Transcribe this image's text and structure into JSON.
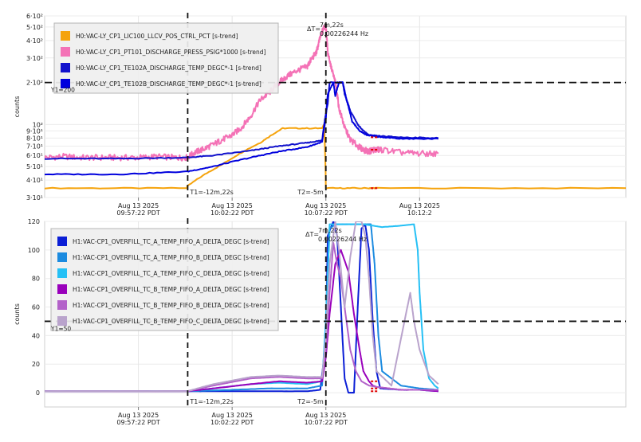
{
  "chart_data": [
    {
      "type": "line",
      "ylabel": "counts",
      "yscale": "log",
      "ylim": [
        30,
        600
      ],
      "y_ticks": [
        {
          "v": 30,
          "label": "3·10¹"
        },
        {
          "v": 40,
          "label": "4·10¹"
        },
        {
          "v": 50,
          "label": "5·10¹"
        },
        {
          "v": 60,
          "label": "6·10¹"
        },
        {
          "v": 70,
          "label": "7·10¹"
        },
        {
          "v": 80,
          "label": "8·10¹"
        },
        {
          "v": 90,
          "label": "9·10¹"
        },
        {
          "v": 100,
          "label": "10²"
        },
        {
          "v": 200,
          "label": "2·10²"
        },
        {
          "v": 300,
          "label": "3·10²"
        },
        {
          "v": 400,
          "label": "4·10²"
        },
        {
          "v": 500,
          "label": "5·10²"
        },
        {
          "v": 600,
          "label": "6·10²"
        }
      ],
      "xlim": [
        -20,
        11
      ],
      "x_ticks": [
        {
          "v": -15,
          "date": "Aug 13 2025",
          "time": "09:57:22 PDT"
        },
        {
          "v": -10,
          "date": "Aug 13 2025",
          "time": "10:02:22 PDT"
        },
        {
          "v": -5,
          "date": "Aug 13 2025",
          "time": "10:07:22 PDT"
        },
        {
          "v": 0,
          "date": "Aug 13 2025",
          "time": "10:12:2"
        }
      ],
      "cursors": {
        "t1": {
          "x": -12.37,
          "label": "T1=-12m,22s"
        },
        "t2": {
          "x": -5,
          "label": "T2=-5m"
        },
        "y1": {
          "y": 200,
          "label": "Y1=200"
        },
        "delta_label": "ΔT=",
        "delta_value": "7m,22s",
        "delta_freq": "0.00226244 Hz"
      },
      "grid": true,
      "legend_position": "top-left",
      "series": [
        {
          "name": "H0:VAC-LY_CP1_LIC100_LLCV_POS_CTRL_PCT [s-trend]",
          "color": "#f5a30c",
          "points": [
            [
              -20,
              35
            ],
            [
              -12.4,
              35
            ],
            [
              -12.4,
              36
            ],
            [
              -10.5,
              52
            ],
            [
              -8.5,
              74
            ],
            [
              -7.3,
              94
            ],
            [
              -5.2,
              94
            ],
            [
              -5.1,
              100
            ],
            [
              -5,
              35
            ],
            [
              -2.7,
              35
            ],
            [
              -2.3,
              35
            ],
            [
              11,
              35
            ]
          ]
        },
        {
          "name": "H0:VAC-LY_CP1_PT101_DISCHARGE_PRESS_PSIG*1000 [s-trend]",
          "color": "#f472b6",
          "points": [
            [
              -20,
              58
            ],
            [
              -19,
              59
            ],
            [
              -18,
              58
            ],
            [
              -17,
              58
            ],
            [
              -16,
              58
            ],
            [
              -15,
              58
            ],
            [
              -14,
              59
            ],
            [
              -13,
              58
            ],
            [
              -12.4,
              58
            ],
            [
              -12,
              63
            ],
            [
              -11.5,
              67
            ],
            [
              -11,
              72
            ],
            [
              -10.5,
              78
            ],
            [
              -10,
              84
            ],
            [
              -9.5,
              95
            ],
            [
              -9,
              115
            ],
            [
              -8.5,
              150
            ],
            [
              -8,
              170
            ],
            [
              -7.5,
              200
            ],
            [
              -7,
              225
            ],
            [
              -6.5,
              245
            ],
            [
              -6,
              260
            ],
            [
              -5.8,
              290
            ],
            [
              -5.5,
              330
            ],
            [
              -5.3,
              420
            ],
            [
              -5.1,
              500
            ],
            [
              -5,
              500
            ],
            [
              -4.9,
              330
            ],
            [
              -4.7,
              250
            ],
            [
              -4.5,
              200
            ],
            [
              -4.3,
              130
            ],
            [
              -4,
              95
            ],
            [
              -3.7,
              78
            ],
            [
              -3.3,
              70
            ],
            [
              -3,
              66
            ],
            [
              -2.7,
              64
            ],
            [
              -2.5,
              66
            ],
            [
              -2.3,
              66
            ],
            [
              -2,
              66
            ],
            [
              -1,
              63
            ],
            [
              0,
              62
            ],
            [
              1,
              62
            ]
          ]
        },
        {
          "name": "H0:VAC-LY_CP1_TE102A_DISCHARGE_TEMP_DEGC*-1 [s-trend]",
          "color": "#1111cc",
          "points": [
            [
              -20,
              57
            ],
            [
              -16,
              57
            ],
            [
              -12.4,
              58
            ],
            [
              -11,
              60
            ],
            [
              -9,
              65
            ],
            [
              -7.5,
              70
            ],
            [
              -6,
              74
            ],
            [
              -5.2,
              77
            ],
            [
              -5,
              120
            ],
            [
              -4.9,
              140
            ],
            [
              -4.8,
              200
            ],
            [
              -4.1,
              200
            ],
            [
              -4,
              165
            ],
            [
              -3.7,
              125
            ],
            [
              -3.3,
              100
            ],
            [
              -3,
              90
            ],
            [
              -2.7,
              84
            ],
            [
              -2.3,
              83
            ],
            [
              -1,
              81
            ],
            [
              1,
              80
            ]
          ]
        },
        {
          "name": "H0:VAC-LY_CP1_TE102B_DISCHARGE_TEMP_DEGC*-1 [s-trend]",
          "color": "#0000dd",
          "points": [
            [
              -20,
              44
            ],
            [
              -16,
              44
            ],
            [
              -12.4,
              46
            ],
            [
              -11,
              50
            ],
            [
              -9,
              58
            ],
            [
              -7.5,
              64
            ],
            [
              -6,
              69
            ],
            [
              -5.2,
              75
            ],
            [
              -5,
              110
            ],
            [
              -4.9,
              165
            ],
            [
              -4.6,
              200
            ],
            [
              -4.5,
              160
            ],
            [
              -4.3,
              200
            ],
            [
              -4.1,
              200
            ],
            [
              -3.9,
              150
            ],
            [
              -3.6,
              105
            ],
            [
              -3.2,
              90
            ],
            [
              -2.8,
              84
            ],
            [
              -2.3,
              82
            ],
            [
              -1,
              79
            ],
            [
              1,
              79
            ]
          ]
        }
      ]
    },
    {
      "type": "line",
      "ylabel": "counts",
      "ylim": [
        -10,
        120
      ],
      "y_ticks": [
        {
          "v": 0,
          "label": "0"
        },
        {
          "v": 20,
          "label": "20"
        },
        {
          "v": 40,
          "label": "40"
        },
        {
          "v": 60,
          "label": "60"
        },
        {
          "v": 80,
          "label": "80"
        },
        {
          "v": 100,
          "label": "100"
        },
        {
          "v": 120,
          "label": "120"
        }
      ],
      "xlim": [
        -20,
        11
      ],
      "x_ticks": [
        {
          "v": -15,
          "date": "Aug 13 2025",
          "time": "09:57:22 PDT"
        },
        {
          "v": -10,
          "date": "Aug 13 2025",
          "time": "10:02:22 PDT"
        },
        {
          "v": -5,
          "date": "Aug 13 2025",
          "time": "10:07:22 PDT"
        }
      ],
      "cursors": {
        "t1": {
          "x": -12.37,
          "label": "T1=-12m,22s"
        },
        "t2": {
          "x": -5,
          "label": "T2=-5m"
        },
        "y1": {
          "y": 50,
          "label": "Y1=50"
        },
        "delta_label": "ΔT=",
        "delta_value": "7m,22s",
        "delta_freq": "0.00226244 Hz"
      },
      "grid": true,
      "legend_position": "top-left",
      "series": [
        {
          "name": "H1:VAC-CP1_OVERFILL_TC_A_TEMP_FIFO_A_DELTA_DEGC [s-trend]",
          "color": "#0b1fd6",
          "points": [
            [
              -20,
              1
            ],
            [
              -12.4,
              1
            ],
            [
              -11,
              1
            ],
            [
              -8,
              1
            ],
            [
              -6,
              1
            ],
            [
              -5.3,
              2
            ],
            [
              -5,
              35
            ],
            [
              -4.9,
              110
            ],
            [
              -4.6,
              120
            ],
            [
              -4.4,
              110
            ],
            [
              -4.2,
              60
            ],
            [
              -4,
              10
            ],
            [
              -3.8,
              0
            ],
            [
              -3.5,
              0
            ],
            [
              -3.3,
              60
            ],
            [
              -3.1,
              115
            ],
            [
              -2.9,
              118
            ],
            [
              -2.7,
              100
            ],
            [
              -2.5,
              50
            ],
            [
              -2.3,
              15
            ],
            [
              -2.1,
              3
            ],
            [
              -1,
              2
            ],
            [
              0,
              2
            ],
            [
              1,
              1
            ]
          ]
        },
        {
          "name": "H1:VAC-CP1_OVERFILL_TC_A_TEMP_FIFO_B_DELTA_DEGC [s-trend]",
          "color": "#1c8be0",
          "points": [
            [
              -20,
              1
            ],
            [
              -12.4,
              1
            ],
            [
              -10,
              2
            ],
            [
              -8,
              3
            ],
            [
              -6,
              3
            ],
            [
              -5.2,
              5
            ],
            [
              -5,
              50
            ],
            [
              -4.8,
              115
            ],
            [
              -4.5,
              118
            ],
            [
              -3.5,
              118
            ],
            [
              -3,
              118
            ],
            [
              -2.6,
              118
            ],
            [
              -2.4,
              90
            ],
            [
              -2.2,
              40
            ],
            [
              -2,
              15
            ],
            [
              -1,
              5
            ],
            [
              0,
              3
            ],
            [
              1,
              2
            ]
          ]
        },
        {
          "name": "H1:VAC-CP1_OVERFILL_TC_A_TEMP_FIFO_C_DELTA_DEGC [s-trend]",
          "color": "#25c0f5",
          "points": [
            [
              -20,
              1
            ],
            [
              -12.4,
              1
            ],
            [
              -11,
              3
            ],
            [
              -9,
              6
            ],
            [
              -7.5,
              7
            ],
            [
              -6,
              6
            ],
            [
              -5.2,
              8
            ],
            [
              -5,
              50
            ],
            [
              -4.8,
              118
            ],
            [
              -3,
              118
            ],
            [
              -2,
              116
            ],
            [
              -1,
              117
            ],
            [
              -0.3,
              118
            ],
            [
              -0.1,
              100
            ],
            [
              0,
              70
            ],
            [
              0.2,
              30
            ],
            [
              0.5,
              10
            ],
            [
              0.8,
              5
            ],
            [
              1,
              3
            ]
          ]
        },
        {
          "name": "H1:VAC-CP1_OVERFILL_TC_B_TEMP_FIFO_A_DELTA_DEGC [s-trend]",
          "color": "#9900bb",
          "points": [
            [
              -20,
              1
            ],
            [
              -12.4,
              1
            ],
            [
              -11,
              3
            ],
            [
              -9,
              6
            ],
            [
              -7.5,
              8
            ],
            [
              -6,
              7
            ],
            [
              -5.2,
              8
            ],
            [
              -5,
              25
            ],
            [
              -4.8,
              55
            ],
            [
              -4.5,
              90
            ],
            [
              -4.2,
              100
            ],
            [
              -3.8,
              85
            ],
            [
              -3.5,
              55
            ],
            [
              -3.2,
              30
            ],
            [
              -3,
              15
            ],
            [
              -2.7,
              8
            ],
            [
              -2.5,
              5
            ],
            [
              -2.3,
              4
            ],
            [
              -1,
              2
            ],
            [
              0,
              2
            ],
            [
              1,
              1
            ]
          ]
        },
        {
          "name": "H1:VAC-CP1_OVERFILL_TC_B_TEMP_FIFO_B_DELTA_DEGC [s-trend]",
          "color": "#b362c9",
          "points": [
            [
              -20,
              1
            ],
            [
              -12.4,
              1
            ],
            [
              -11,
              5
            ],
            [
              -9,
              10
            ],
            [
              -7.5,
              11
            ],
            [
              -6,
              10
            ],
            [
              -5.2,
              10
            ],
            [
              -5,
              30
            ],
            [
              -4.8,
              70
            ],
            [
              -4.6,
              105
            ],
            [
              -4.4,
              90
            ],
            [
              -4.2,
              80
            ],
            [
              -4,
              60
            ],
            [
              -3.7,
              30
            ],
            [
              -3.4,
              15
            ],
            [
              -3.1,
              8
            ],
            [
              -2.7,
              5
            ],
            [
              -2.3,
              4
            ],
            [
              -1,
              2
            ],
            [
              1,
              2
            ]
          ]
        },
        {
          "name": "H1:VAC-CP1_OVERFILL_TC_B_TEMP_FIFO_C_DELTA_DEGC [s-trend]",
          "color": "#b9a3cc",
          "points": [
            [
              -20,
              1
            ],
            [
              -12.4,
              1
            ],
            [
              -11,
              6
            ],
            [
              -9,
              11
            ],
            [
              -7.5,
              12
            ],
            [
              -6,
              11
            ],
            [
              -5.2,
              11
            ],
            [
              -5,
              40
            ],
            [
              -4.8,
              90
            ],
            [
              -4.5,
              120
            ],
            [
              -4.3,
              100
            ],
            [
              -4,
              60
            ],
            [
              -3.7,
              95
            ],
            [
              -3.4,
              120
            ],
            [
              -3.1,
              120
            ],
            [
              -2.9,
              110
            ],
            [
              -2.7,
              80
            ],
            [
              -2.5,
              40
            ],
            [
              -2.3,
              15
            ],
            [
              -1.5,
              5
            ],
            [
              -0.5,
              70
            ],
            [
              -0.3,
              50
            ],
            [
              0,
              30
            ],
            [
              0.5,
              12
            ],
            [
              1,
              6
            ]
          ]
        }
      ]
    }
  ]
}
